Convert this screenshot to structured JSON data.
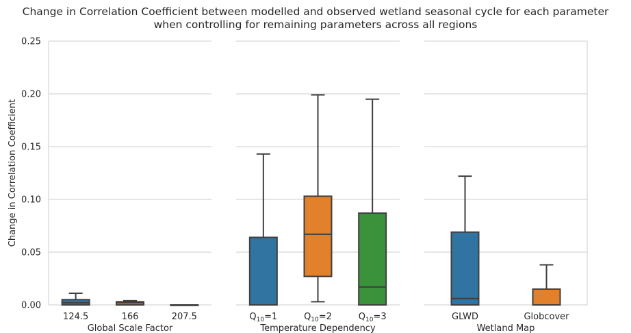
{
  "title_line1": "Change in Correlation Coefficient between modelled and observed wetland seasonal cycle for each parameter",
  "title_line2": "when controlling for remaining parameters across all regions",
  "chart_data": {
    "type": "box",
    "ylabel": "Change in Correlation Coefficient",
    "ylim": [
      0,
      0.25
    ],
    "yticks": [
      0.0,
      0.05,
      0.1,
      0.15,
      0.2,
      0.25
    ],
    "ytick_labels": [
      "0.00",
      "0.05",
      "0.10",
      "0.15",
      "0.20",
      "0.25"
    ],
    "grid": true,
    "colors": {
      "blue": "#3274a1",
      "orange": "#e1812c",
      "green": "#3a923a",
      "grey": "#7f7f7f",
      "edge": "#3f3f3f",
      "grid": "#cccccc"
    },
    "panels": [
      {
        "xlabel": "Global Scale Factor",
        "boxes": [
          {
            "label": "124.5",
            "color": "blue",
            "q1": 0.0,
            "median": 0.002,
            "q3": 0.005,
            "whislo": 0.0,
            "whishi": 0.011
          },
          {
            "label": "166",
            "color": "orange",
            "q1": 0.0,
            "median": 0.002,
            "q3": 0.003,
            "whislo": 0.0,
            "whishi": 0.004
          },
          {
            "label": "207.5",
            "color": "green",
            "q1": 0.0,
            "median": 0.0,
            "q3": 0.0,
            "whislo": 0.0,
            "whishi": 0.0
          }
        ]
      },
      {
        "xlabel": "Temperature Dependency",
        "boxes": [
          {
            "label": "Q10=1",
            "tick_base": "Q",
            "tick_sub": "10",
            "tick_rest": "=1",
            "color": "blue",
            "q1": 0.0,
            "median": 0.0,
            "q3": 0.064,
            "whislo": 0.0,
            "whishi": 0.143
          },
          {
            "label": "Q10=2",
            "tick_base": "Q",
            "tick_sub": "10",
            "tick_rest": "=2",
            "color": "orange",
            "q1": 0.027,
            "median": 0.067,
            "q3": 0.103,
            "whislo": 0.003,
            "whishi": 0.199
          },
          {
            "label": "Q10=3",
            "tick_base": "Q",
            "tick_sub": "10",
            "tick_rest": "=3",
            "color": "green",
            "q1": 0.0,
            "median": 0.017,
            "q3": 0.087,
            "whislo": 0.0,
            "whishi": 0.195
          }
        ]
      },
      {
        "xlabel": "Wetland Map",
        "boxes": [
          {
            "label": "GLWD",
            "color": "blue",
            "q1": 0.0,
            "median": 0.006,
            "q3": 0.069,
            "whislo": 0.0,
            "whishi": 0.122
          },
          {
            "label": "Globcover",
            "color": "orange",
            "q1": 0.0,
            "median": 0.0,
            "q3": 0.015,
            "whislo": 0.0,
            "whishi": 0.038
          }
        ]
      }
    ]
  }
}
